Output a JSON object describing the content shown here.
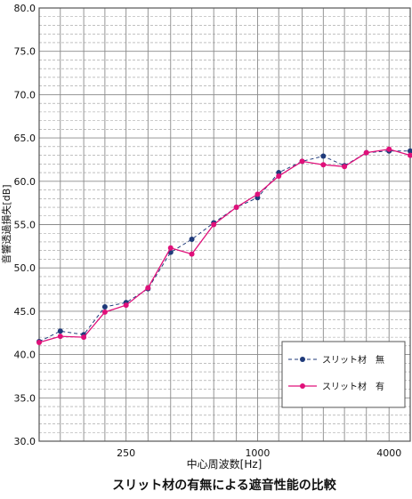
{
  "chart_data": {
    "type": "line",
    "title": "スリット材の有無による遮音性能の比較",
    "xlabel": "中心周波数[Hz]",
    "ylabel": "音響透過損失[dB]",
    "x_scale": "log",
    "x_tick_labels": [
      "250",
      "1000",
      "4000"
    ],
    "x_ticks": [
      250,
      1000,
      4000
    ],
    "x_range": [
      100,
      5000
    ],
    "ylim": [
      30.0,
      80.0
    ],
    "y_ticks": [
      30.0,
      35.0,
      40.0,
      45.0,
      50.0,
      55.0,
      60.0,
      65.0,
      70.0,
      75.0,
      80.0
    ],
    "y_tick_labels": [
      "30.0",
      "35.0",
      "40.0",
      "45.0",
      "50.0",
      "55.0",
      "60.0",
      "65.0",
      "70.0",
      "75.0",
      "80.0"
    ],
    "grid": true,
    "legend_position": "bottom-right",
    "x": [
      100,
      125,
      160,
      200,
      250,
      315,
      400,
      500,
      630,
      800,
      1000,
      1250,
      1600,
      2000,
      2500,
      3150,
      4000,
      5000
    ],
    "series": [
      {
        "name": "スリット材　無",
        "color": "#1f3a7a",
        "line_style": "dashed",
        "values": [
          41.5,
          42.7,
          42.3,
          45.5,
          46.0,
          47.6,
          51.8,
          53.3,
          55.2,
          57.0,
          58.1,
          61.0,
          62.3,
          62.9,
          61.8,
          63.3,
          63.5,
          63.5
        ]
      },
      {
        "name": "スリット材　有",
        "color": "#e0107a",
        "line_style": "solid",
        "values": [
          41.4,
          42.1,
          42.0,
          44.9,
          45.7,
          47.7,
          52.3,
          51.6,
          55.0,
          57.0,
          58.5,
          60.6,
          62.3,
          61.9,
          61.7,
          63.3,
          63.7,
          63.0
        ]
      }
    ]
  }
}
